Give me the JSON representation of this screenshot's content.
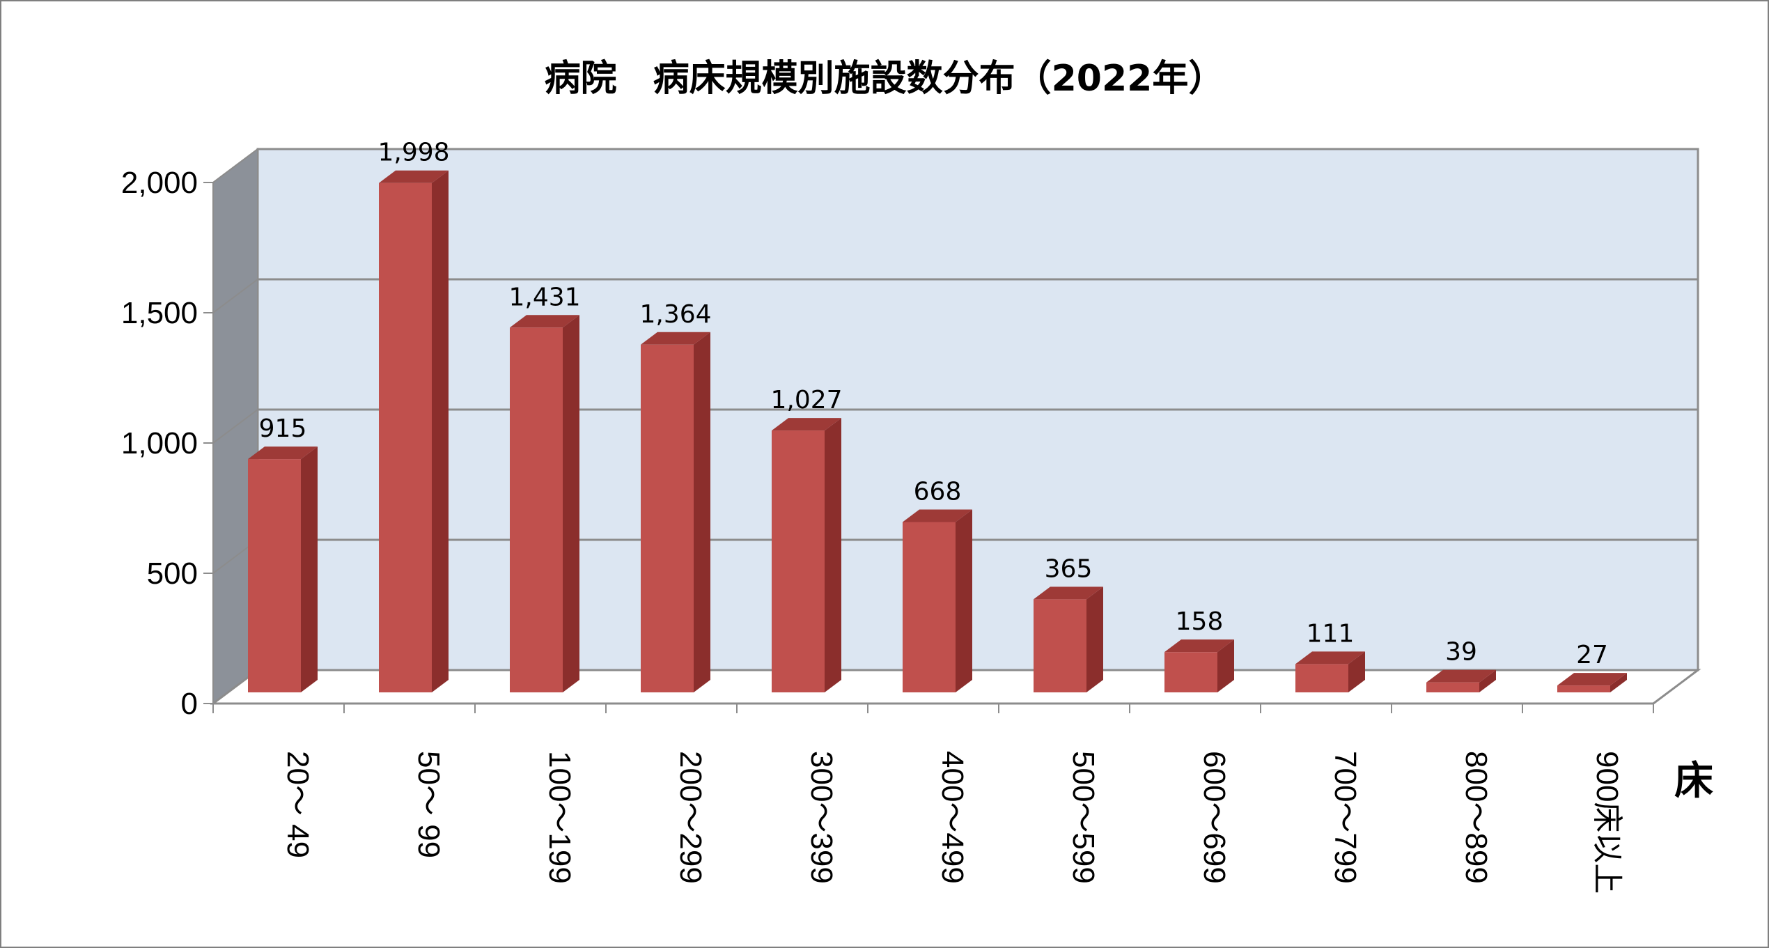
{
  "chart_data": {
    "type": "bar",
    "title": "病院　病床規模別施設数分布（2022年）",
    "categories": [
      "20～ 49",
      "50～ 99",
      "100～199",
      "200～299",
      "300～399",
      "400～499",
      "500～599",
      "600～699",
      "700～799",
      "800～899",
      "900床以上"
    ],
    "values": [
      915,
      1998,
      1431,
      1364,
      1027,
      668,
      365,
      158,
      111,
      39,
      27
    ],
    "data_labels": [
      "915",
      "1,998",
      "1,431",
      "1,364",
      "1,027",
      "668",
      "365",
      "158",
      "111",
      "39",
      "27"
    ],
    "y_ticks": [
      "0",
      "500",
      "1,000",
      "1,500",
      "2,000"
    ],
    "ylim": [
      0,
      2000
    ],
    "xlabel": "床",
    "ylabel": "",
    "grid": true,
    "legend": "none",
    "style": "3d-column",
    "colors": {
      "bar_front": "#c0504d",
      "bar_side": "#8b2e2c",
      "bar_top": "#9e3a37",
      "back_wall": "#dce6f2",
      "side_wall": "#8c9199",
      "gridline": "#8c8c8c"
    }
  }
}
